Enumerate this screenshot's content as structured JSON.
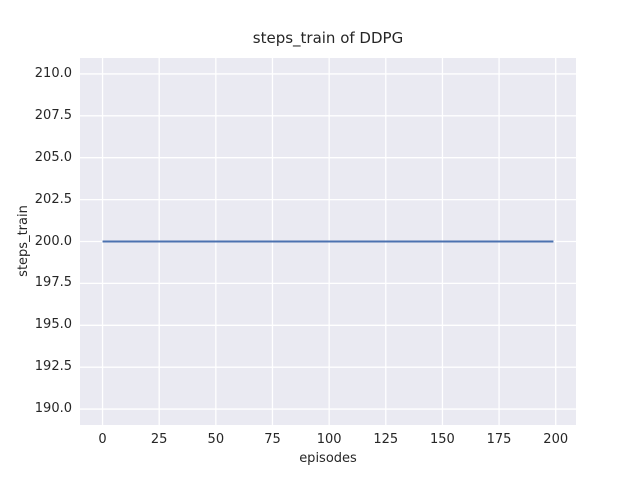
{
  "title": "steps_train of DDPG",
  "chart_data": {
    "type": "line",
    "title": "steps_train of DDPG",
    "xlabel": "episodes",
    "ylabel": "steps_train",
    "xlim": [
      -9.95,
      208.95
    ],
    "ylim": [
      189.05,
      210.95
    ],
    "xticks": [
      0,
      25,
      50,
      75,
      100,
      125,
      150,
      175,
      200
    ],
    "xtick_labels": [
      "0",
      "25",
      "50",
      "75",
      "100",
      "125",
      "150",
      "175",
      "200"
    ],
    "yticks": [
      190.0,
      192.5,
      195.0,
      197.5,
      200.0,
      202.5,
      205.0,
      207.5,
      210.0
    ],
    "ytick_labels": [
      "190.0",
      "192.5",
      "195.0",
      "197.5",
      "200.0",
      "202.5",
      "205.0",
      "207.5",
      "210.0"
    ],
    "grid": true,
    "legend": null,
    "colors": {
      "axes_background": "#EAEAF2",
      "grid_color": "#FFFFFF",
      "text_color": "#262626",
      "line_color": "#4C72B0"
    },
    "series": [
      {
        "name": "steps_train",
        "color": "#4C72B0",
        "x": [
          0,
          199
        ],
        "y": [
          200,
          200
        ]
      }
    ]
  }
}
